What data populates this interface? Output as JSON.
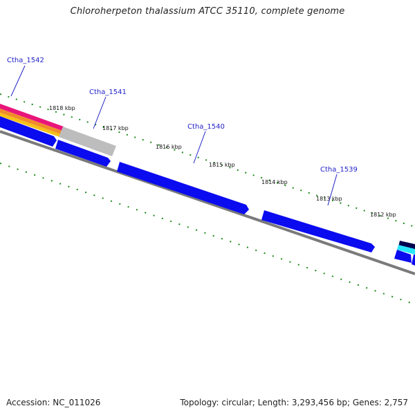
{
  "title": "Chloroherpeton thalassium ATCC 35110, complete genome",
  "footer": {
    "accession": "Accession: NC_011026",
    "summary": "Topology: circular; Length: 3,293,456 bp; Genes: 2,757"
  },
  "colors": {
    "gene_blue": "#0b0bf0",
    "gene_blue_light": "#4c4cff",
    "backbone": "#7a7a7a",
    "tick_green": "#1b8a1b",
    "label_blue": "#2121c8"
  },
  "genes": [
    {
      "id": "Ctha_1542",
      "label": "Ctha_1542"
    },
    {
      "id": "Ctha_1541",
      "label": "Ctha_1541"
    },
    {
      "id": "Ctha_1540",
      "label": "Ctha_1540"
    },
    {
      "id": "Ctha_1539",
      "label": "Ctha_1539"
    }
  ],
  "kbp_ticks": [
    {
      "label": "1818 kbp"
    },
    {
      "label": "1817 kbp"
    },
    {
      "label": "1816 kbp"
    },
    {
      "label": "1815 kbp"
    },
    {
      "label": "1814 kbp"
    },
    {
      "label": "1813 kbp"
    },
    {
      "label": "1812 kbp"
    }
  ]
}
